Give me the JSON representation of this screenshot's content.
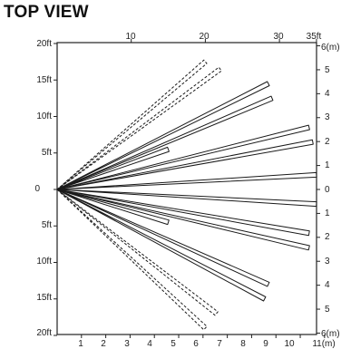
{
  "title": "TOP VIEW",
  "axes": {
    "top_ft": [
      "10",
      "20",
      "30",
      "35ft"
    ],
    "left_ft": [
      "20ft",
      "15ft",
      "10ft",
      "5ft",
      "0",
      "5ft",
      "10ft",
      "15ft",
      "20ft"
    ],
    "right_m": [
      "6(m)",
      "5",
      "4",
      "3",
      "2",
      "1",
      "0",
      "1",
      "2",
      "3",
      "4",
      "5",
      "6(m)"
    ],
    "bottom_m": [
      "1",
      "2",
      "3",
      "4",
      "5",
      "6",
      "7",
      "8",
      "9",
      "10",
      "11(m)"
    ]
  },
  "detection_zones_ft": [
    {
      "length": 20.0,
      "lateral": 17.5,
      "style": "dash"
    },
    {
      "length": 22.0,
      "lateral": 16.5,
      "style": "dash"
    },
    {
      "length": 28.5,
      "lateral": 14.5,
      "style": "solid"
    },
    {
      "length": 29.0,
      "lateral": 12.5,
      "style": "solid"
    },
    {
      "length": 15.0,
      "lateral": 5.5,
      "style": "solid"
    },
    {
      "length": 34.0,
      "lateral": 8.5,
      "style": "solid"
    },
    {
      "length": 34.5,
      "lateral": 6.5,
      "style": "solid"
    },
    {
      "length": 35.0,
      "lateral": 2.0,
      "style": "solid"
    },
    {
      "length": 35.0,
      "lateral": -2.0,
      "style": "solid"
    },
    {
      "length": 15.0,
      "lateral": -4.5,
      "style": "solid"
    },
    {
      "length": 34.0,
      "lateral": -6.0,
      "style": "solid"
    },
    {
      "length": 34.0,
      "lateral": -8.0,
      "style": "solid"
    },
    {
      "length": 28.5,
      "lateral": -13.0,
      "style": "solid"
    },
    {
      "length": 28.0,
      "lateral": -15.0,
      "style": "solid"
    },
    {
      "length": 21.5,
      "lateral": -17.0,
      "style": "dash"
    },
    {
      "length": 20.0,
      "lateral": -19.0,
      "style": "dash"
    }
  ]
}
